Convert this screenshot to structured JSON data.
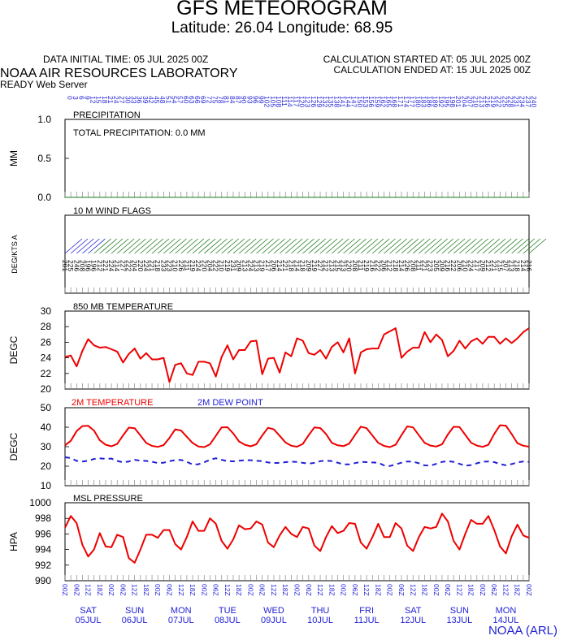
{
  "header": {
    "title": "GFS METEOROGRAM",
    "subtitle": "Latitude: 26.04 Longitude:  68.95",
    "data_initial_time": "DATA INITIAL TIME: 05 JUL 2025 00Z",
    "calc_started": "CALCULATION STARTED AT: 05 JUL 2025 00Z",
    "calc_ended": "CALCULATION ENDED AT: 15 JUL 2025 00Z",
    "lab": "NOAA AIR RESOURCES LABORATORY",
    "server": "READY Web Server",
    "footer": "NOAA (ARL)"
  },
  "colors": {
    "red": "#ee0000",
    "blue": "#1f1fd6",
    "green": "#1a7a1a",
    "frame": "#000000"
  },
  "days": [
    {
      "dow": "SAT",
      "date": "05JUL"
    },
    {
      "dow": "SUN",
      "date": "06JUL"
    },
    {
      "dow": "MON",
      "date": "07JUL"
    },
    {
      "dow": "TUE",
      "date": "08JUL"
    },
    {
      "dow": "WED",
      "date": "09JUL"
    },
    {
      "dow": "THU",
      "date": "10JUL"
    },
    {
      "dow": "FRI",
      "date": "11JUL"
    },
    {
      "dow": "SAT",
      "date": "12JUL"
    },
    {
      "dow": "SUN",
      "date": "13JUL"
    },
    {
      "dow": "MON",
      "date": "14JUL"
    }
  ],
  "utc_hour_labels": [
    "00Z",
    "06Z",
    "12Z",
    "18Z"
  ],
  "forecast_hour_labels": [
    "0",
    "3",
    "6",
    "9",
    "12",
    "15",
    "18",
    "21",
    "24",
    "27",
    "30",
    "33",
    "36",
    "39",
    "42",
    "45",
    "48",
    "51",
    "54",
    "57",
    "60",
    "63",
    "66",
    "69",
    "72",
    "75",
    "78",
    "81",
    "84",
    "87",
    "90",
    "93",
    "96",
    "99",
    "102",
    "105",
    "108",
    "111",
    "114",
    "117",
    "120",
    "123",
    "126",
    "129",
    "132",
    "135",
    "138",
    "141",
    "144",
    "147",
    "150",
    "153",
    "156",
    "159",
    "162",
    "165",
    "168",
    "171",
    "174",
    "177",
    "180",
    "183",
    "186",
    "189",
    "192",
    "195",
    "198",
    "201",
    "204",
    "207",
    "210",
    "213",
    "216",
    "219",
    "222",
    "225",
    "228",
    "231",
    "234",
    "237",
    "240"
  ],
  "chart_data": [
    {
      "type": "line",
      "title": "PRECIPITATION",
      "annotation": "TOTAL PRECIPITATION:   0.0 MM",
      "ylabel": "MM",
      "ylim": [
        0.0,
        1.0
      ],
      "yticks": [
        "0.0",
        "0.5",
        "1.0"
      ],
      "x_unit": "forecast hour",
      "x": [
        0,
        240
      ],
      "series": [
        {
          "values": [
            0.0,
            0.0
          ]
        }
      ]
    },
    {
      "type": "wind_flags",
      "title": "10 M  WIND FLAGS",
      "ylabel": "DEG/KTS  A",
      "x_unit": "forecast hour",
      "direction_labels": [
        "201",
        "225",
        "246",
        "208",
        "196",
        "196",
        "212",
        "221",
        "224",
        "214",
        "227",
        "222",
        "204",
        "220",
        "224",
        "221",
        "218",
        "233",
        "223",
        "210",
        "226",
        "211",
        "219",
        "224",
        "220",
        "204",
        "222",
        "210",
        "219",
        "231",
        "209",
        "213",
        "224",
        "213",
        "219",
        "217",
        "206",
        "214",
        "221",
        "218",
        "214",
        "218",
        "209",
        "219",
        "227",
        "212",
        "213",
        "215",
        "213",
        "220",
        "208",
        "211",
        "219",
        "216",
        "222",
        "206",
        "212",
        "218",
        "214",
        "226",
        "208",
        "211",
        "221",
        "223",
        "205",
        "209",
        "216",
        "222",
        "206",
        "210",
        "224",
        "217",
        "209",
        "212",
        "221",
        "215",
        "207",
        "213",
        "218",
        "214",
        "216"
      ]
    },
    {
      "type": "line",
      "title": "850 MB  TEMPERATURE",
      "ylabel": "DEGC",
      "ylim": [
        20,
        30
      ],
      "yticks": [
        "20",
        "22",
        "24",
        "26",
        "28",
        "30"
      ],
      "x_unit": "forecast hour",
      "x_step": 3,
      "series": [
        {
          "name": "",
          "color": "red",
          "values": [
            24.1,
            24.3,
            22.9,
            24.9,
            26.4,
            25.6,
            25.3,
            25.4,
            25.1,
            24.8,
            23.4,
            24.5,
            25.2,
            23.9,
            24.6,
            23.8,
            23.8,
            24.0,
            20.9,
            23.1,
            23.3,
            22.0,
            21.8,
            23.5,
            23.5,
            23.3,
            21.6,
            24.1,
            25.6,
            23.8,
            25.0,
            25.0,
            26.1,
            26.2,
            21.9,
            23.9,
            24.0,
            22.1,
            24.7,
            24.2,
            26.5,
            26.2,
            24.6,
            24.4,
            25.0,
            23.9,
            25.4,
            26.0,
            24.7,
            26.5,
            22.0,
            24.7,
            25.1,
            25.2,
            25.2,
            27.0,
            27.4,
            27.8,
            24.0,
            24.8,
            25.3,
            25.3,
            27.3,
            26.0,
            27.0,
            26.3,
            24.2,
            24.9,
            26.2,
            25.2,
            26.1,
            26.5,
            25.8,
            26.7,
            26.7,
            25.8,
            26.5,
            25.9,
            26.5,
            27.3,
            27.8
          ]
        }
      ]
    },
    {
      "type": "line",
      "title": "",
      "ylabel": "DEGC",
      "ylim": [
        10,
        50
      ],
      "yticks": [
        "10",
        "20",
        "30",
        "40",
        "50"
      ],
      "x_unit": "forecast hour",
      "x_step": 3,
      "series": [
        {
          "name": "2M TEMPERATURE",
          "color": "red",
          "style": "solid",
          "values": [
            30.7,
            33.0,
            38.0,
            40.6,
            40.7,
            38.3,
            33.3,
            31.0,
            30.2,
            31.4,
            35.8,
            39.8,
            39.5,
            35.8,
            31.9,
            30.4,
            29.9,
            30.8,
            34.5,
            38.9,
            38.3,
            35.1,
            31.9,
            30.1,
            29.8,
            31.2,
            35.6,
            39.9,
            40.0,
            36.8,
            32.7,
            31.0,
            30.2,
            31.3,
            35.8,
            39.7,
            38.9,
            35.6,
            32.2,
            30.5,
            30.0,
            31.4,
            35.9,
            39.9,
            39.6,
            36.5,
            32.0,
            30.7,
            30.3,
            31.6,
            36.1,
            40.3,
            39.5,
            35.7,
            32.0,
            30.4,
            29.8,
            31.0,
            35.9,
            40.4,
            39.9,
            35.9,
            32.0,
            30.6,
            30.1,
            31.2,
            36.3,
            40.2,
            40.1,
            36.1,
            32.1,
            30.6,
            29.9,
            31.0,
            36.6,
            41.0,
            40.8,
            36.5,
            31.8,
            30.5,
            30.0
          ]
        },
        {
          "name": "2M  DEW POINT",
          "color": "blue",
          "style": "dashed",
          "values": [
            24.6,
            24.2,
            22.7,
            22.4,
            22.8,
            23.7,
            24.0,
            23.8,
            23.9,
            22.7,
            22.0,
            22.4,
            23.3,
            22.8,
            22.7,
            22.3,
            21.6,
            21.8,
            22.6,
            23.1,
            23.2,
            22.2,
            20.9,
            21.0,
            22.0,
            23.3,
            24.1,
            23.3,
            22.6,
            22.5,
            22.8,
            23.1,
            23.1,
            22.8,
            22.6,
            21.9,
            21.6,
            21.7,
            22.1,
            22.3,
            22.2,
            21.7,
            21.3,
            21.7,
            22.6,
            22.8,
            22.6,
            21.8,
            20.9,
            20.9,
            21.6,
            22.2,
            22.1,
            21.9,
            21.8,
            20.4,
            20.1,
            20.9,
            21.8,
            22.4,
            22.3,
            21.5,
            20.4,
            20.3,
            21.2,
            22.2,
            22.6,
            22.2,
            21.2,
            20.2,
            20.6,
            21.5,
            22.3,
            22.4,
            22.1,
            21.1,
            20.5,
            21.1,
            22.0,
            22.4,
            22.2
          ]
        }
      ]
    },
    {
      "type": "line",
      "title": "MSL PRESSURE",
      "ylabel": "HPA",
      "ylim": [
        990,
        1000
      ],
      "yticks": [
        "990",
        "992",
        "994",
        "996",
        "998",
        "1000"
      ],
      "x_unit": "forecast hour",
      "x_step": 3,
      "series": [
        {
          "name": "",
          "color": "red",
          "values": [
            996.8,
            998.3,
            997.4,
            994.6,
            993.1,
            994.0,
            996.1,
            994.4,
            994.3,
            995.9,
            995.6,
            992.9,
            992.3,
            994.0,
            995.9,
            995.9,
            995.5,
            996.5,
            996.5,
            994.7,
            994.0,
            995.6,
            997.6,
            996.4,
            996.4,
            998.0,
            997.3,
            995.1,
            994.1,
            995.3,
            997.1,
            996.6,
            996.7,
            997.6,
            997.2,
            994.9,
            994.3,
            995.8,
            996.9,
            996.0,
            995.6,
            996.9,
            996.7,
            994.5,
            993.8,
            995.6,
            997.0,
            996.1,
            996.4,
            997.4,
            997.3,
            994.9,
            994.1,
            995.6,
            997.3,
            995.6,
            995.6,
            997.4,
            996.7,
            994.5,
            993.8,
            995.6,
            996.9,
            996.7,
            996.9,
            998.6,
            997.6,
            995.1,
            994.0,
            996.0,
            997.8,
            997.3,
            997.3,
            998.3,
            996.5,
            994.4,
            993.5,
            995.7,
            997.2,
            995.8,
            995.5
          ]
        }
      ]
    }
  ]
}
